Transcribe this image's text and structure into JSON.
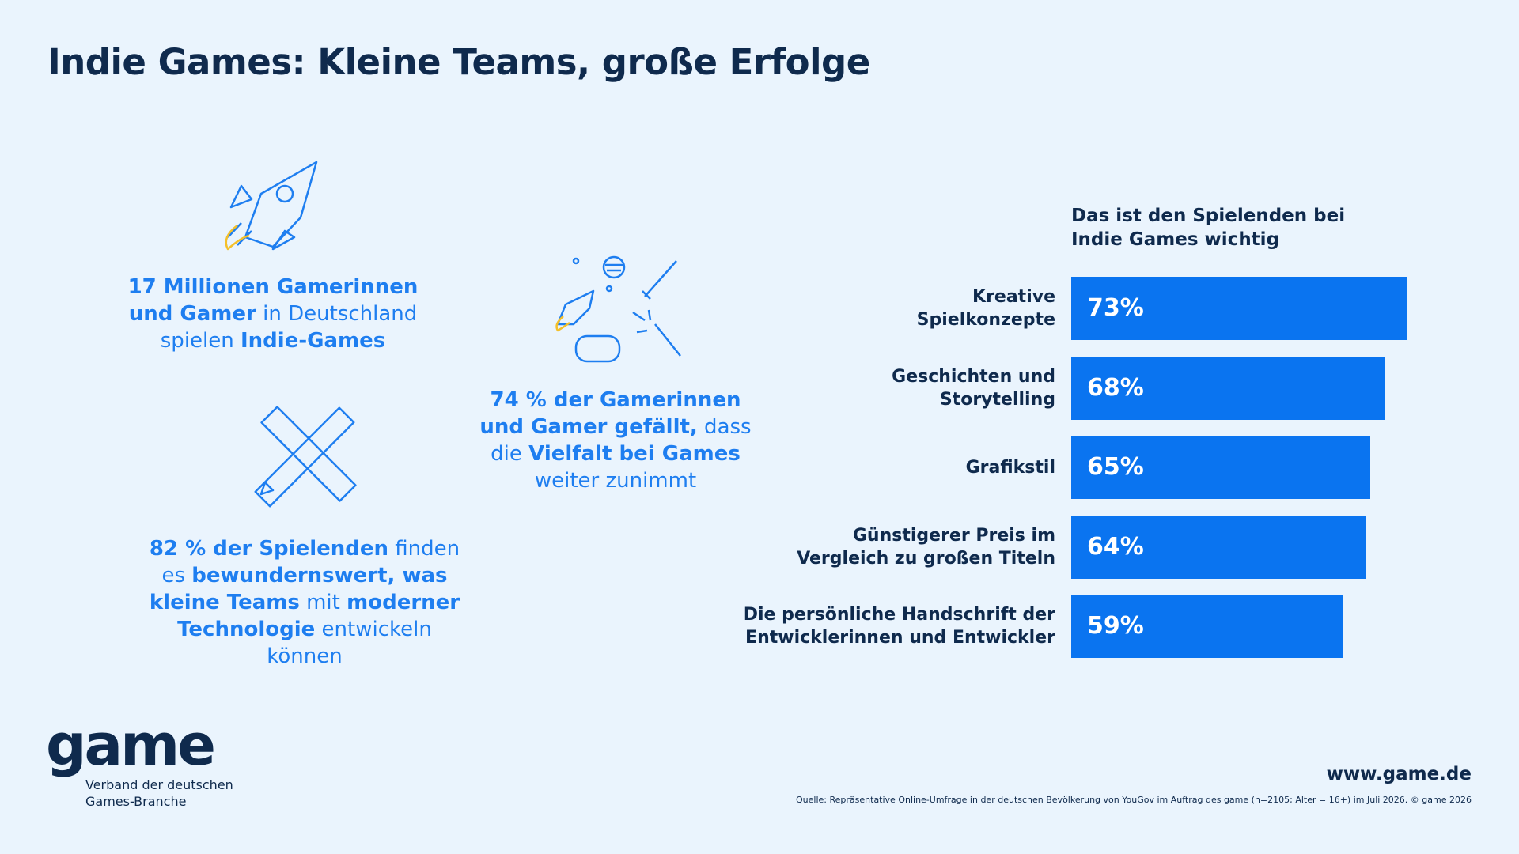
{
  "title": "Indie Games: Kleine Teams, große Erfolge",
  "stats": [
    {
      "parts": [
        {
          "text": "17 Millionen Gamerinnen und Gamer",
          "bold": true
        },
        {
          "text": " in Deutschland spielen ",
          "bold": false
        },
        {
          "text": "Indie-Games",
          "bold": true
        }
      ]
    },
    {
      "parts": [
        {
          "text": "74 % der Gamerinnen und Gamer gefällt,",
          "bold": true
        },
        {
          "text": " dass die ",
          "bold": false
        },
        {
          "text": "Vielfalt bei Games",
          "bold": true
        },
        {
          "text": " weiter zunimmt",
          "bold": false
        }
      ]
    },
    {
      "parts": [
        {
          "text": "82 % der Spielenden",
          "bold": true
        },
        {
          "text": " finden es ",
          "bold": false
        },
        {
          "text": "bewundernswert, was kleine Teams",
          "bold": true
        },
        {
          "text": " mit ",
          "bold": false
        },
        {
          "text": "moderner Technologie",
          "bold": true
        },
        {
          "text": " entwickeln können",
          "bold": false
        }
      ]
    }
  ],
  "chart_data": {
    "type": "bar",
    "orientation": "horizontal",
    "title": "Das ist den Spielenden bei\nIndie Games wichtig",
    "categories": [
      "Kreative\nSpielkonzepte",
      "Geschichten und\nStorytelling",
      "Grafikstil",
      "Günstigerer Preis im\nVergleich zu großen Titeln",
      "Die persönliche Handschrift der\nEntwicklerinnen und Entwickler"
    ],
    "values": [
      73,
      68,
      65,
      64,
      59
    ],
    "value_labels": [
      "73%",
      "68%",
      "65%",
      "64%",
      "59%"
    ],
    "color": "#0a74f0"
  },
  "footer": {
    "logo": "game",
    "org": "Verband der deutschen\nGames-Branche",
    "url": "www.game.de",
    "source": "Quelle: Repräsentative Online-Umfrage in der deutschen Bevölkerung von YouGov im Auftrag des game (n=2105; Alter = 16+) im Juli 2026. © game 2026"
  }
}
